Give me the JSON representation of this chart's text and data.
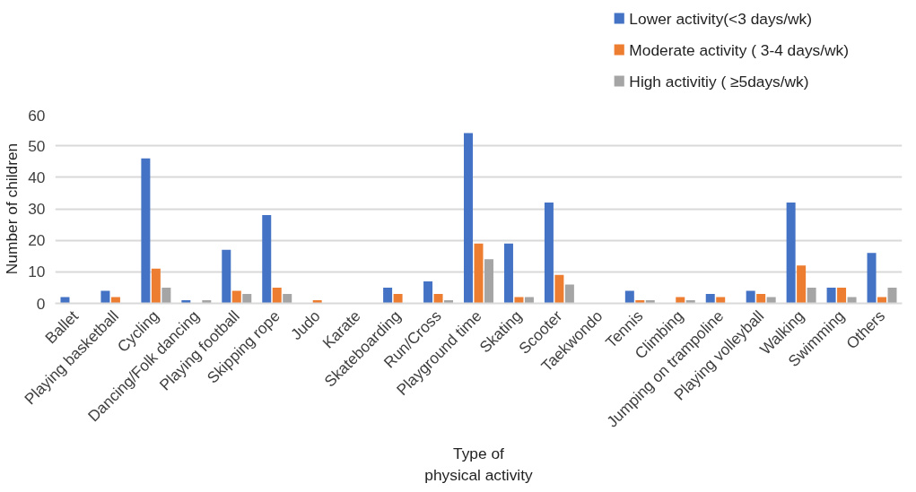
{
  "chart_data": {
    "type": "bar",
    "xlabel": "Type of\nphysical activity",
    "ylabel": "Number of children",
    "categories": [
      "Ballet",
      "Playing basketball",
      "Cycling",
      "Dancing/Folk dancing",
      "Playing football",
      "Skipping rope",
      "Judo",
      "Karate",
      "Skateboarding",
      "Run/Cross",
      "Playground time",
      "Skating",
      "Scooter",
      "Taekwondo",
      "Tennis",
      "Climbing",
      "Jumping on trampoline",
      "Playing volleyball",
      "Walking",
      "Swimming",
      "Others"
    ],
    "series": [
      {
        "name": "Lower activity(<3 days/wk)",
        "color": "#4472c4",
        "values": [
          2,
          4,
          46,
          1,
          17,
          28,
          0,
          0,
          5,
          7,
          54,
          19,
          32,
          0,
          4,
          0,
          3,
          4,
          32,
          5,
          16
        ]
      },
      {
        "name": "Moderate activity ( 3-4 days/wk)",
        "color": "#ed7d31",
        "values": [
          0,
          2,
          11,
          0,
          4,
          5,
          1,
          0,
          3,
          3,
          19,
          2,
          9,
          0,
          1,
          2,
          2,
          3,
          12,
          5,
          2
        ]
      },
      {
        "name": "High activitiy ( ≥5days/wk)",
        "color": "#a5a5a5",
        "values": [
          0,
          0,
          5,
          1,
          3,
          3,
          0,
          0,
          0,
          1,
          14,
          2,
          6,
          0,
          1,
          1,
          0,
          2,
          5,
          2,
          5
        ]
      }
    ],
    "ylim": [
      0,
      60
    ],
    "yticks": [
      0,
      10,
      20,
      30,
      40,
      50,
      60
    ],
    "grid": "y",
    "legend": "top right"
  }
}
